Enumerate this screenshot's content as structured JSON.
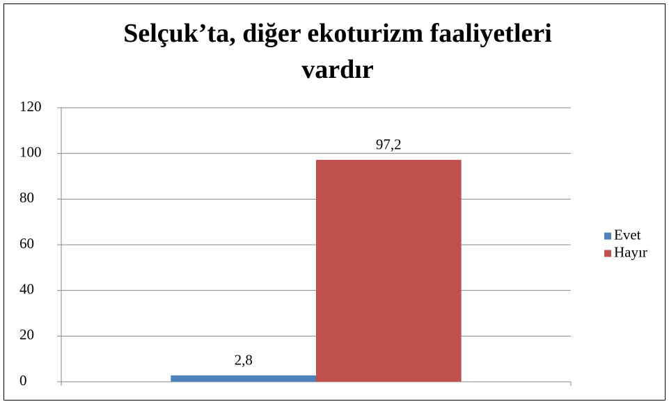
{
  "chart_data": {
    "type": "bar",
    "title": "Selçuk’ta, diğer ekoturizm faaliyetleri vardır",
    "categories": [
      null
    ],
    "series": [
      {
        "name": "Evet",
        "color": "#4f81bd",
        "values": [
          2.8
        ],
        "value_labels": [
          "2,8"
        ]
      },
      {
        "name": "Hayır",
        "color": "#c0504d",
        "values": [
          97.2
        ],
        "value_labels": [
          "97,2"
        ]
      }
    ],
    "ylim": [
      0,
      120
    ],
    "yticks": [
      0,
      20,
      40,
      60,
      80,
      100,
      120
    ],
    "grid": true,
    "legend": "right"
  }
}
